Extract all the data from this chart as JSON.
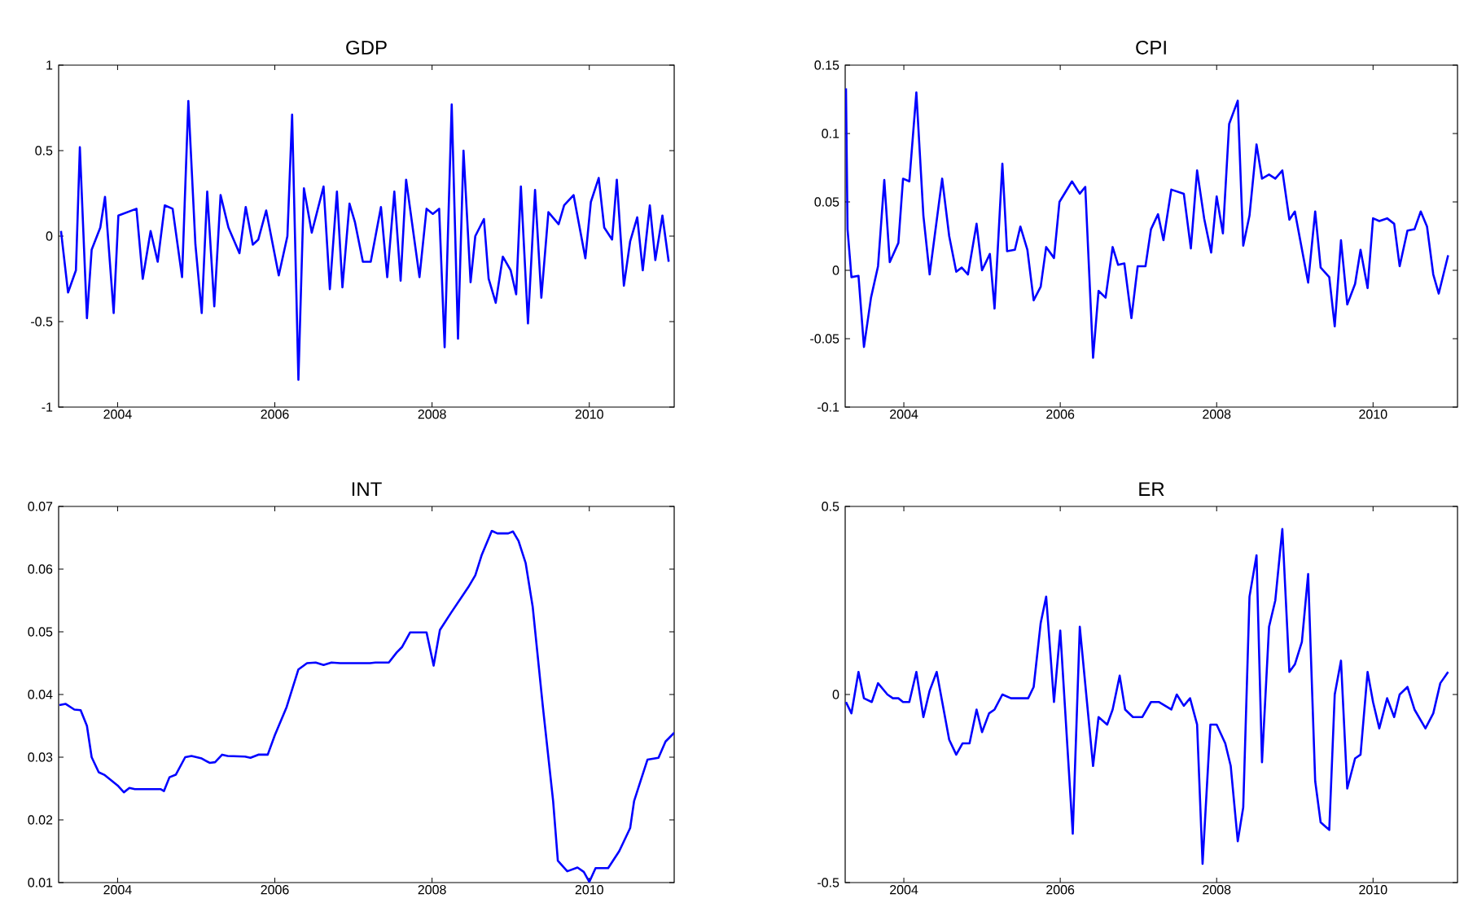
{
  "chart_data": [
    {
      "type": "line",
      "title": "GDP",
      "xlim": [
        2003.25,
        2011.08
      ],
      "ylim": [
        -1,
        1
      ],
      "xticks": [
        2004,
        2006,
        2008,
        2010
      ],
      "yticks": [
        -1,
        -0.5,
        0,
        0.5,
        1
      ],
      "series": [
        {
          "color": "#0000ff",
          "x": [
            2003.28,
            2003.37,
            2003.47,
            2003.52,
            2003.61,
            2003.67,
            2003.78,
            2003.84,
            2003.95,
            2004.01,
            2004.24,
            2004.32,
            2004.42,
            2004.51,
            2004.6,
            2004.7,
            2004.82,
            2004.9,
            2004.99,
            2005.07,
            2005.14,
            2005.23,
            2005.31,
            2005.41,
            2005.55,
            2005.63,
            2005.72,
            2005.79,
            2005.89,
            2006.05,
            2006.16,
            2006.22,
            2006.3,
            2006.37,
            2006.47,
            2006.62,
            2006.7,
            2006.79,
            2006.86,
            2006.95,
            2007.02,
            2007.12,
            2007.22,
            2007.35,
            2007.43,
            2007.52,
            2007.6,
            2007.67,
            2007.84,
            2007.93,
            2008.01,
            2008.09,
            2008.16,
            2008.25,
            2008.33,
            2008.4,
            2008.49,
            2008.55,
            2008.66,
            2008.72,
            2008.81,
            2008.9,
            2009.0,
            2009.07,
            2009.13,
            2009.22,
            2009.31,
            2009.39,
            2009.48,
            2009.61,
            2009.68,
            2009.8,
            2009.95,
            2010.02,
            2010.12,
            2010.19,
            2010.29,
            2010.35,
            2010.44,
            2010.52,
            2010.61,
            2010.68,
            2010.77,
            2010.84,
            2010.93,
            2011.01
          ],
          "values": [
            0.03,
            -0.33,
            -0.2,
            0.52,
            -0.48,
            -0.08,
            0.05,
            0.23,
            -0.45,
            0.12,
            0.16,
            -0.25,
            0.03,
            -0.15,
            0.18,
            0.16,
            -0.24,
            0.79,
            -0.05,
            -0.45,
            0.26,
            -0.41,
            0.24,
            0.05,
            -0.1,
            0.17,
            -0.05,
            -0.02,
            0.15,
            -0.23,
            0.0,
            0.71,
            -0.84,
            0.28,
            0.02,
            0.29,
            -0.31,
            0.26,
            -0.3,
            0.19,
            0.08,
            -0.15,
            -0.15,
            0.17,
            -0.24,
            0.26,
            -0.26,
            0.33,
            -0.24,
            0.16,
            0.13,
            0.16,
            -0.65,
            0.77,
            -0.6,
            0.5,
            -0.27,
            0.0,
            0.1,
            -0.25,
            -0.39,
            -0.12,
            -0.2,
            -0.34,
            0.29,
            -0.51,
            0.27,
            -0.36,
            0.14,
            0.07,
            0.18,
            0.24,
            -0.13,
            0.2,
            0.34,
            0.05,
            -0.02,
            0.33,
            -0.29,
            -0.03,
            0.11,
            -0.2,
            0.18,
            -0.14,
            0.12,
            -0.15
          ]
        }
      ]
    },
    {
      "type": "line",
      "title": "CPI",
      "xlim": [
        2003.25,
        2011.08
      ],
      "ylim": [
        -0.1,
        0.15
      ],
      "xticks": [
        2004,
        2006,
        2008,
        2010
      ],
      "yticks": [
        -0.1,
        -0.05,
        0,
        0.05,
        0.1,
        0.15
      ],
      "series": [
        {
          "color": "#0000ff",
          "x": [
            2003.26,
            2003.28,
            2003.33,
            2003.42,
            2003.49,
            2003.58,
            2003.67,
            2003.75,
            2003.82,
            2003.93,
            2003.99,
            2004.07,
            2004.16,
            2004.25,
            2004.33,
            2004.49,
            2004.58,
            2004.67,
            2004.74,
            2004.82,
            2004.93,
            2005.0,
            2005.1,
            2005.16,
            2005.26,
            2005.32,
            2005.42,
            2005.49,
            2005.58,
            2005.66,
            2005.75,
            2005.82,
            2005.92,
            2005.99,
            2006.15,
            2006.25,
            2006.32,
            2006.42,
            2006.49,
            2006.58,
            2006.67,
            2006.74,
            2006.82,
            2006.91,
            2006.99,
            2007.09,
            2007.16,
            2007.25,
            2007.32,
            2007.42,
            2007.58,
            2007.67,
            2007.75,
            2007.84,
            2007.93,
            2008.0,
            2008.08,
            2008.16,
            2008.27,
            2008.34,
            2008.42,
            2008.51,
            2008.58,
            2008.67,
            2008.75,
            2008.84,
            2008.93,
            2009.0,
            2009.17,
            2009.26,
            2009.33,
            2009.44,
            2009.51,
            2009.59,
            2009.67,
            2009.77,
            2009.84,
            2009.93,
            2010.0,
            2010.08,
            2010.18,
            2010.27,
            2010.34,
            2010.44,
            2010.53,
            2010.61,
            2010.69,
            2010.77,
            2010.84,
            2010.96
          ],
          "values": [
            0.133,
            0.03,
            -0.005,
            -0.004,
            -0.056,
            -0.02,
            0.003,
            0.066,
            0.006,
            0.02,
            0.067,
            0.065,
            0.13,
            0.04,
            -0.003,
            0.067,
            0.025,
            -0.001,
            0.002,
            -0.003,
            0.034,
            0.0,
            0.012,
            -0.028,
            0.078,
            0.014,
            0.015,
            0.032,
            0.015,
            -0.022,
            -0.012,
            0.017,
            0.009,
            0.05,
            0.065,
            0.056,
            0.061,
            -0.064,
            -0.015,
            -0.02,
            0.017,
            0.004,
            0.005,
            -0.035,
            0.003,
            0.003,
            0.03,
            0.041,
            0.022,
            0.059,
            0.056,
            0.016,
            0.073,
            0.038,
            0.013,
            0.054,
            0.027,
            0.107,
            0.124,
            0.018,
            0.04,
            0.092,
            0.067,
            0.07,
            0.067,
            0.073,
            0.037,
            0.043,
            -0.009,
            0.043,
            0.002,
            -0.005,
            -0.041,
            0.022,
            -0.025,
            -0.01,
            0.015,
            -0.013,
            0.038,
            0.036,
            0.038,
            0.034,
            0.003,
            0.029,
            0.03,
            0.043,
            0.032,
            -0.003,
            -0.017,
            0.011
          ]
        }
      ]
    },
    {
      "type": "line",
      "title": "INT",
      "xlim": [
        2003.25,
        2011.08
      ],
      "ylim": [
        0.01,
        0.07
      ],
      "xticks": [
        2004,
        2006,
        2008,
        2010
      ],
      "yticks": [
        0.01,
        0.02,
        0.03,
        0.04,
        0.05,
        0.06,
        0.07
      ],
      "series": [
        {
          "color": "#0000ff",
          "x": [
            2003.26,
            2003.34,
            2003.45,
            2003.53,
            2003.61,
            2003.67,
            2003.76,
            2003.83,
            2004.0,
            2004.08,
            2004.15,
            2004.22,
            2004.55,
            2004.59,
            2004.66,
            2004.74,
            2004.86,
            2004.94,
            2005.07,
            2005.17,
            2005.24,
            2005.33,
            2005.4,
            2005.62,
            2005.69,
            2005.79,
            2005.91,
            2006.0,
            2006.15,
            2006.3,
            2006.41,
            2006.52,
            2006.62,
            2006.72,
            2006.83,
            2007.21,
            2007.28,
            2007.45,
            2007.55,
            2007.62,
            2007.72,
            2007.93,
            2008.02,
            2008.1,
            2008.24,
            2008.46,
            2008.55,
            2008.63,
            2008.76,
            2008.83,
            2008.97,
            2009.03,
            2009.1,
            2009.19,
            2009.28,
            2009.41,
            2009.54,
            2009.6,
            2009.72,
            2009.85,
            2009.93,
            2010.0,
            2010.08,
            2010.24,
            2010.38,
            2010.52,
            2010.57,
            2010.66,
            2010.74,
            2010.88,
            2010.97,
            2011.08
          ],
          "values": [
            0.0383,
            0.0385,
            0.0376,
            0.0375,
            0.035,
            0.03,
            0.0276,
            0.0272,
            0.0255,
            0.0244,
            0.0251,
            0.0249,
            0.0249,
            0.0246,
            0.0268,
            0.0272,
            0.03,
            0.0302,
            0.0298,
            0.0291,
            0.0292,
            0.0304,
            0.0302,
            0.0301,
            0.0299,
            0.0304,
            0.0304,
            0.0335,
            0.038,
            0.044,
            0.045,
            0.0451,
            0.0447,
            0.0451,
            0.045,
            0.045,
            0.0451,
            0.0451,
            0.0467,
            0.0476,
            0.0499,
            0.0499,
            0.0446,
            0.0503,
            0.053,
            0.0571,
            0.059,
            0.0622,
            0.0661,
            0.0657,
            0.0657,
            0.066,
            0.0645,
            0.061,
            0.054,
            0.038,
            0.023,
            0.0135,
            0.0118,
            0.0124,
            0.0117,
            0.0101,
            0.0123,
            0.0123,
            0.015,
            0.0187,
            0.023,
            0.0265,
            0.0296,
            0.0299,
            0.0325,
            0.0339
          ]
        }
      ]
    },
    {
      "type": "line",
      "title": "ER",
      "xlim": [
        2003.25,
        2011.08
      ],
      "ylim": [
        -0.5,
        0.5
      ],
      "xticks": [
        2004,
        2006,
        2008,
        2010
      ],
      "yticks": [
        -0.5,
        0,
        0.5
      ],
      "series": [
        {
          "color": "#0000ff",
          "x": [
            2003.26,
            2003.33,
            2003.42,
            2003.49,
            2003.59,
            2003.67,
            2003.79,
            2003.86,
            2003.93,
            2003.99,
            2004.07,
            2004.16,
            2004.25,
            2004.33,
            2004.42,
            2004.58,
            2004.67,
            2004.75,
            2004.84,
            2004.93,
            2005.0,
            2005.09,
            2005.16,
            2005.26,
            2005.37,
            2005.51,
            2005.59,
            2005.66,
            2005.75,
            2005.82,
            2005.92,
            2006.0,
            2006.16,
            2006.25,
            2006.42,
            2006.49,
            2006.6,
            2006.67,
            2006.76,
            2006.83,
            2006.93,
            2007.05,
            2007.16,
            2007.26,
            2007.42,
            2007.49,
            2007.58,
            2007.66,
            2007.75,
            2007.82,
            2007.92,
            2008.0,
            2008.11,
            2008.18,
            2008.27,
            2008.34,
            2008.42,
            2008.51,
            2008.58,
            2008.67,
            2008.75,
            2008.84,
            2008.93,
            2009.0,
            2009.09,
            2009.17,
            2009.26,
            2009.33,
            2009.44,
            2009.51,
            2009.59,
            2009.67,
            2009.77,
            2009.84,
            2009.93,
            2010.0,
            2010.08,
            2010.18,
            2010.27,
            2010.34,
            2010.44,
            2010.53,
            2010.67,
            2010.77,
            2010.86,
            2010.96
          ],
          "values": [
            -0.02,
            -0.05,
            0.06,
            -0.01,
            -0.02,
            0.03,
            0.0,
            -0.01,
            -0.01,
            -0.02,
            -0.02,
            0.06,
            -0.06,
            0.01,
            0.06,
            -0.12,
            -0.16,
            -0.13,
            -0.13,
            -0.04,
            -0.1,
            -0.05,
            -0.04,
            0.0,
            -0.01,
            -0.01,
            -0.01,
            0.02,
            0.19,
            0.26,
            -0.02,
            0.17,
            -0.37,
            0.18,
            -0.19,
            -0.06,
            -0.08,
            -0.04,
            0.05,
            -0.04,
            -0.06,
            -0.06,
            -0.02,
            -0.02,
            -0.04,
            0.0,
            -0.03,
            -0.01,
            -0.08,
            -0.45,
            -0.08,
            -0.08,
            -0.13,
            -0.19,
            -0.39,
            -0.3,
            0.26,
            0.37,
            -0.18,
            0.18,
            0.25,
            0.44,
            0.06,
            0.08,
            0.14,
            0.32,
            -0.23,
            -0.34,
            -0.36,
            0.0,
            0.09,
            -0.25,
            -0.17,
            -0.16,
            0.06,
            -0.02,
            -0.09,
            -0.01,
            -0.06,
            0.0,
            0.02,
            -0.04,
            -0.09,
            -0.05,
            0.03,
            0.06
          ]
        }
      ]
    }
  ]
}
